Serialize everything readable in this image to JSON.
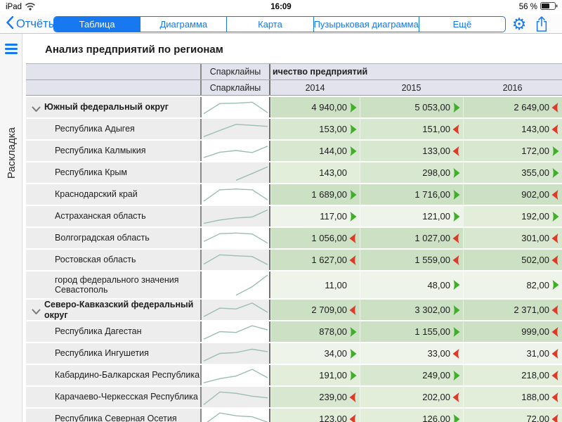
{
  "status_bar": {
    "device": "iPad",
    "time": "16:09",
    "battery": "56 %"
  },
  "nav": {
    "back_label": "Отчёты",
    "tabs": [
      {
        "label": "Таблица",
        "selected": true
      },
      {
        "label": "Диаграмма",
        "selected": false
      },
      {
        "label": "Карта",
        "selected": false
      },
      {
        "label": "Пузырьковая диаграмма",
        "selected": false
      },
      {
        "label": "Ещё",
        "selected": false
      }
    ]
  },
  "sidebar": {
    "vertical_label": "Раскладка"
  },
  "page": {
    "title": "Анализ предприятий по регионам"
  },
  "table": {
    "header": {
      "sparkline_label_row1": "Спарклайны",
      "sparkline_label_row2": "Спарклайны",
      "measure_title_clipped": "ичество предприятий",
      "years": [
        "2014",
        "2015",
        "2016"
      ]
    },
    "rows": [
      {
        "name": "Южный федеральный округ",
        "group": true,
        "tall": false,
        "values": [
          "4 940,00",
          "5 053,00",
          "2 649,00"
        ],
        "arrows": [
          "up",
          "up",
          "down"
        ],
        "tones": [
          4,
          4,
          4
        ],
        "spark": [
          0.12,
          0.72,
          0.74,
          0.8,
          0.18
        ]
      },
      {
        "name": "Республика Адыгея",
        "group": false,
        "tall": false,
        "values": [
          "153,00",
          "151,00",
          "143,00"
        ],
        "arrows": [
          "up",
          "down",
          "down"
        ],
        "tones": [
          3,
          3,
          3
        ],
        "spark": [
          0.05,
          0.42,
          0.78,
          0.72,
          0.66
        ]
      },
      {
        "name": "Республика Калмыкия",
        "group": false,
        "tall": false,
        "values": [
          "144,00",
          "133,00",
          "172,00"
        ],
        "arrows": [
          "up",
          "down",
          "up"
        ],
        "tones": [
          3,
          3,
          3
        ],
        "spark": [
          0.1,
          0.42,
          0.52,
          0.4,
          0.78
        ]
      },
      {
        "name": "Республика Крым",
        "group": false,
        "tall": false,
        "values": [
          "143,00",
          "298,00",
          "355,00"
        ],
        "arrows": [
          "none",
          "up",
          "up"
        ],
        "tones": [
          2,
          3,
          3
        ],
        "spark": [
          null,
          null,
          0.05,
          0.45,
          0.85
        ]
      },
      {
        "name": "Краснодарский край",
        "group": false,
        "tall": false,
        "values": [
          "1 689,00",
          "1 716,00",
          "902,00"
        ],
        "arrows": [
          "up",
          "up",
          "down"
        ],
        "tones": [
          4,
          4,
          4
        ],
        "spark": [
          0.1,
          0.78,
          0.82,
          0.78,
          0.18
        ]
      },
      {
        "name": "Астраханская область",
        "group": false,
        "tall": false,
        "values": [
          "117,00",
          "121,00",
          "192,00"
        ],
        "arrows": [
          "up",
          "up",
          "up"
        ],
        "tones": [
          1,
          1,
          2
        ],
        "spark": [
          0.08,
          0.28,
          0.4,
          0.46,
          0.88
        ]
      },
      {
        "name": "Волгоградская область",
        "group": false,
        "tall": false,
        "values": [
          "1 056,00",
          "1 027,00",
          "301,00"
        ],
        "arrows": [
          "down",
          "down",
          "down"
        ],
        "tones": [
          4,
          4,
          3
        ],
        "spark": [
          0.3,
          0.76,
          0.8,
          0.74,
          0.2
        ]
      },
      {
        "name": "Ростовская область",
        "group": false,
        "tall": false,
        "values": [
          "1 627,00",
          "1 559,00",
          "502,00"
        ],
        "arrows": [
          "down",
          "down",
          "down"
        ],
        "tones": [
          4,
          4,
          4
        ],
        "spark": [
          0.25,
          0.8,
          0.74,
          0.7,
          0.22
        ]
      },
      {
        "name": "город федерального значения Севастополь",
        "group": false,
        "tall": true,
        "values": [
          "11,00",
          "48,00",
          "82,00"
        ],
        "arrows": [
          "none",
          "up",
          "up"
        ],
        "tones": [
          1,
          1,
          1
        ],
        "spark": [
          null,
          null,
          0.05,
          0.42,
          0.92
        ]
      },
      {
        "name": "Северо-Кавказский федеральный округ",
        "group": true,
        "tall": false,
        "values": [
          "2 709,00",
          "3 302,00",
          "2 371,00"
        ],
        "arrows": [
          "down",
          "up",
          "down"
        ],
        "tones": [
          4,
          4,
          4
        ],
        "spark": [
          0.1,
          0.6,
          0.55,
          0.9,
          0.35
        ]
      },
      {
        "name": "Республика Дагестан",
        "group": false,
        "tall": false,
        "values": [
          "878,00",
          "1 155,00",
          "999,00"
        ],
        "arrows": [
          "up",
          "up",
          "down"
        ],
        "tones": [
          4,
          4,
          4
        ],
        "spark": [
          0.05,
          0.5,
          0.45,
          0.85,
          0.6
        ]
      },
      {
        "name": "Республика Ингушетия",
        "group": false,
        "tall": false,
        "values": [
          "34,00",
          "33,00",
          "31,00"
        ],
        "arrows": [
          "up",
          "down",
          "down"
        ],
        "tones": [
          1,
          1,
          1
        ],
        "spark": [
          0.05,
          0.5,
          0.55,
          0.75,
          0.6
        ]
      },
      {
        "name": "Кабардино-Балкарская Республика",
        "group": false,
        "tall": false,
        "values": [
          "191,00",
          "249,00",
          "218,00"
        ],
        "arrows": [
          "up",
          "up",
          "down"
        ],
        "tones": [
          2,
          3,
          2
        ],
        "spark": [
          0.05,
          0.3,
          0.45,
          0.85,
          0.35
        ]
      },
      {
        "name": "Карачаево-Черкесская Республика",
        "group": false,
        "tall": false,
        "values": [
          "239,00",
          "202,00",
          "188,00"
        ],
        "arrows": [
          "down",
          "down",
          "down"
        ],
        "tones": [
          3,
          2,
          2
        ],
        "spark": [
          0.05,
          0.8,
          0.72,
          0.55,
          0.45
        ]
      },
      {
        "name": "Республика Северная Осетия",
        "group": false,
        "tall": false,
        "values": [
          "123,00",
          "126,00",
          "72,00"
        ],
        "arrows": [
          "down",
          "up",
          "down"
        ],
        "tones": [
          2,
          2,
          2
        ],
        "spark": [
          0.15,
          0.85,
          0.68,
          0.62,
          0.3
        ]
      }
    ]
  },
  "colors": {
    "accent": "#1878f0",
    "trend_up": "#3fae29",
    "trend_down": "#dd3b27",
    "sparkline": "#9cbdb5",
    "header_bg": "#e3e3ee",
    "row_bg": "#ededed",
    "tone1": "#eef4e9",
    "tone2": "#e2eeda",
    "tone3": "#d8e7cf",
    "tone4": "#cce0c4"
  }
}
